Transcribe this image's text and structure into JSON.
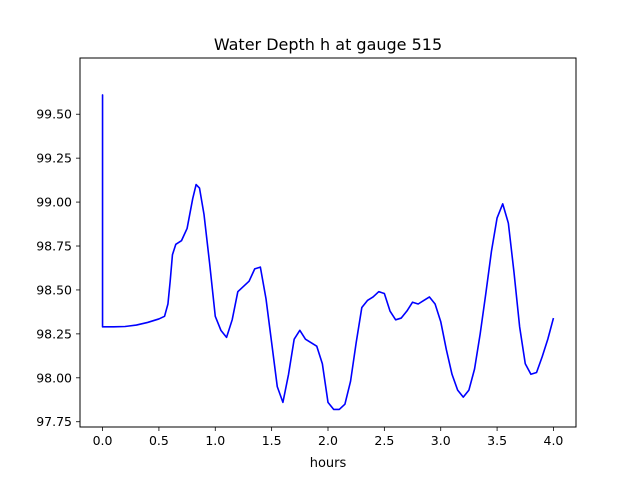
{
  "chart_data": {
    "type": "line",
    "title": "Water Depth h at gauge 515",
    "xlabel": "hours",
    "ylabel": "",
    "xlim": [
      -0.2,
      4.2
    ],
    "ylim": [
      97.72,
      99.82
    ],
    "xticks": [
      0.0,
      0.5,
      1.0,
      1.5,
      2.0,
      2.5,
      3.0,
      3.5,
      4.0
    ],
    "xtick_labels": [
      "0.0",
      "0.5",
      "1.0",
      "1.5",
      "2.0",
      "2.5",
      "3.0",
      "3.5",
      "4.0"
    ],
    "yticks": [
      97.75,
      98.0,
      98.25,
      98.5,
      98.75,
      99.0,
      99.25,
      99.5
    ],
    "ytick_labels": [
      "97.75",
      "98.00",
      "98.25",
      "98.50",
      "98.75",
      "99.00",
      "99.25",
      "99.50"
    ],
    "grid": false,
    "series": [
      {
        "color": "#0000ff",
        "x": [
          0.0,
          0.0,
          0.0,
          0.1,
          0.2,
          0.3,
          0.4,
          0.5,
          0.55,
          0.58,
          0.6,
          0.62,
          0.65,
          0.7,
          0.75,
          0.8,
          0.83,
          0.86,
          0.9,
          0.95,
          1.0,
          1.05,
          1.1,
          1.15,
          1.2,
          1.25,
          1.3,
          1.35,
          1.4,
          1.45,
          1.5,
          1.55,
          1.6,
          1.65,
          1.7,
          1.75,
          1.8,
          1.85,
          1.9,
          1.95,
          2.0,
          2.05,
          2.1,
          2.15,
          2.2,
          2.25,
          2.3,
          2.35,
          2.4,
          2.45,
          2.5,
          2.55,
          2.6,
          2.65,
          2.7,
          2.75,
          2.8,
          2.85,
          2.9,
          2.95,
          3.0,
          3.05,
          3.1,
          3.15,
          3.2,
          3.25,
          3.3,
          3.35,
          3.4,
          3.45,
          3.5,
          3.55,
          3.6,
          3.65,
          3.7,
          3.75,
          3.8,
          3.85,
          3.9,
          3.95,
          4.0
        ],
        "y": [
          98.29,
          99.61,
          98.29,
          98.29,
          98.292,
          98.3,
          98.315,
          98.335,
          98.35,
          98.42,
          98.55,
          98.7,
          98.76,
          98.78,
          98.85,
          99.02,
          99.1,
          99.08,
          98.93,
          98.65,
          98.35,
          98.27,
          98.23,
          98.33,
          98.49,
          98.52,
          98.55,
          98.62,
          98.63,
          98.45,
          98.2,
          97.95,
          97.86,
          98.02,
          98.22,
          98.27,
          98.22,
          98.2,
          98.18,
          98.08,
          97.86,
          97.82,
          97.82,
          97.85,
          97.98,
          98.2,
          98.4,
          98.44,
          98.46,
          98.49,
          98.48,
          98.38,
          98.33,
          98.34,
          98.38,
          98.43,
          98.42,
          98.44,
          98.46,
          98.42,
          98.32,
          98.16,
          98.02,
          97.93,
          97.89,
          97.93,
          98.05,
          98.25,
          98.48,
          98.72,
          98.91,
          98.99,
          98.88,
          98.6,
          98.29,
          98.08,
          98.02,
          98.03,
          98.12,
          98.22,
          98.34
        ]
      }
    ]
  }
}
